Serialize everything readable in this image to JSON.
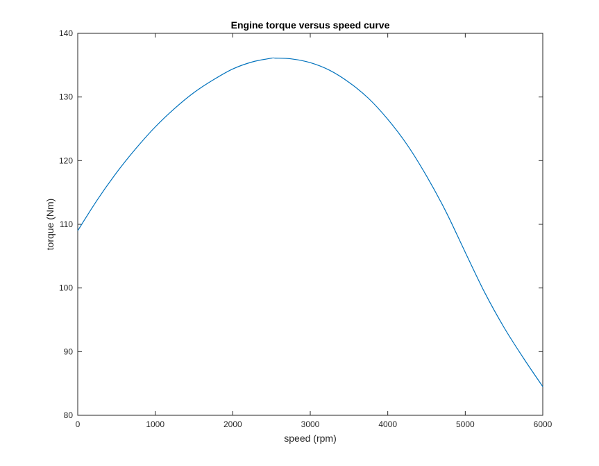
{
  "chart_data": {
    "type": "line",
    "title": "Engine torque versus speed curve",
    "xlabel": "speed (rpm)",
    "ylabel": "torque (Nm)",
    "xlim": [
      0,
      6000
    ],
    "ylim": [
      80,
      140
    ],
    "xticks": [
      0,
      1000,
      2000,
      3000,
      4000,
      5000,
      6000
    ],
    "yticks": [
      80,
      90,
      100,
      110,
      120,
      130,
      140
    ],
    "grid": false,
    "colors": {
      "line": "#0072BD",
      "axes": "#262626"
    },
    "series": [
      {
        "x": [
          0,
          250,
          500,
          750,
          1000,
          1250,
          1500,
          1750,
          2000,
          2250,
          2500,
          2550,
          2750,
          3000,
          3250,
          3500,
          3750,
          4000,
          4250,
          4500,
          4750,
          5000,
          5250,
          5500,
          5750,
          6000
        ],
        "values": [
          109,
          113.8,
          118.1,
          121.9,
          125.3,
          128.2,
          130.7,
          132.7,
          134.4,
          135.5,
          136.1,
          136.1,
          136.0,
          135.4,
          134.2,
          132.3,
          129.8,
          126.5,
          122.5,
          117.6,
          112.0,
          105.6,
          99.3,
          93.8,
          89.0,
          84.5
        ]
      }
    ]
  }
}
